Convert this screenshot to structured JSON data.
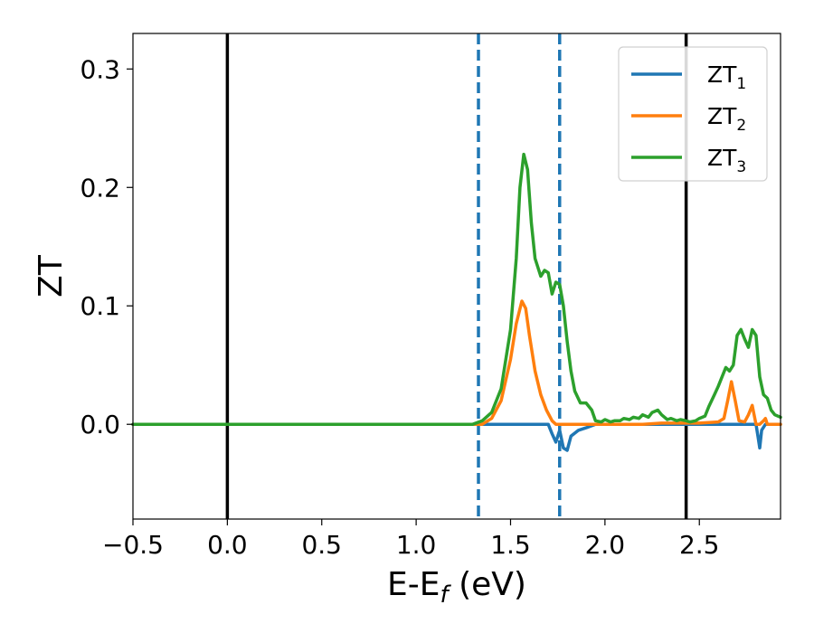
{
  "chart_data": {
    "type": "line",
    "xlabel": "E-E",
    "xlabel_sub": "f",
    "xlabel_unit": " (eV)",
    "ylabel": "ZT",
    "xlim": [
      -0.5,
      2.93
    ],
    "ylim": [
      -0.08,
      0.33
    ],
    "xticks": [
      -0.5,
      0.0,
      0.5,
      1.0,
      1.5,
      2.0,
      2.5
    ],
    "xtick_labels": [
      "−0.5",
      "0.0",
      "0.5",
      "1.0",
      "1.5",
      "2.0",
      "2.5"
    ],
    "yticks": [
      0.0,
      0.1,
      0.2,
      0.3
    ],
    "ytick_labels": [
      "0.0",
      "0.1",
      "0.2",
      "0.3"
    ],
    "grid": false,
    "legend_position": "top-right",
    "vertical_lines": [
      {
        "x": 0.0,
        "style": "solid",
        "color": "#000000"
      },
      {
        "x": 2.43,
        "style": "solid",
        "color": "#000000"
      },
      {
        "x": 1.33,
        "style": "dashed",
        "color": "#1f77b4"
      },
      {
        "x": 1.76,
        "style": "dashed",
        "color": "#1f77b4"
      }
    ],
    "series": [
      {
        "name": "ZT",
        "name_sub": "1",
        "color": "#1f77b4",
        "x": [
          -0.5,
          1.7,
          1.72,
          1.74,
          1.76,
          1.78,
          1.8,
          1.82,
          1.86,
          1.9,
          1.95,
          2.8,
          2.81,
          2.82,
          2.83,
          2.85,
          2.93
        ],
        "y": [
          0.0,
          0.0,
          -0.008,
          -0.015,
          -0.005,
          -0.02,
          -0.022,
          -0.01,
          -0.005,
          -0.003,
          0.0,
          0.0,
          -0.01,
          -0.02,
          -0.005,
          0.0,
          0.0
        ]
      },
      {
        "name": "ZT",
        "name_sub": "2",
        "color": "#ff7f0e",
        "x": [
          -0.5,
          1.35,
          1.4,
          1.45,
          1.5,
          1.53,
          1.56,
          1.58,
          1.6,
          1.63,
          1.66,
          1.69,
          1.72,
          1.74,
          2.2,
          2.3,
          2.4,
          2.5,
          2.6,
          2.63,
          2.65,
          2.67,
          2.69,
          2.71,
          2.74,
          2.76,
          2.78,
          2.8,
          2.82,
          2.84,
          2.85,
          2.86,
          2.93
        ],
        "y": [
          0.0,
          0.0,
          0.005,
          0.02,
          0.055,
          0.085,
          0.104,
          0.098,
          0.075,
          0.045,
          0.025,
          0.012,
          0.003,
          0.0,
          0.0,
          0.001,
          0.001,
          0.001,
          0.002,
          0.005,
          0.02,
          0.036,
          0.02,
          0.003,
          0.002,
          0.008,
          0.016,
          0.0,
          0.0,
          0.003,
          0.005,
          0.0,
          0.0
        ]
      },
      {
        "name": "ZT",
        "name_sub": "3",
        "color": "#2ca02c",
        "x": [
          -0.5,
          1.3,
          1.35,
          1.4,
          1.45,
          1.5,
          1.53,
          1.55,
          1.57,
          1.59,
          1.61,
          1.63,
          1.66,
          1.68,
          1.7,
          1.72,
          1.74,
          1.76,
          1.78,
          1.8,
          1.82,
          1.84,
          1.87,
          1.9,
          1.93,
          1.95,
          1.98,
          2.0,
          2.03,
          2.05,
          2.08,
          2.1,
          2.13,
          2.15,
          2.18,
          2.2,
          2.23,
          2.25,
          2.28,
          2.3,
          2.33,
          2.35,
          2.38,
          2.4,
          2.43,
          2.45,
          2.48,
          2.5,
          2.53,
          2.55,
          2.58,
          2.6,
          2.62,
          2.64,
          2.66,
          2.68,
          2.7,
          2.72,
          2.74,
          2.76,
          2.78,
          2.8,
          2.82,
          2.84,
          2.86,
          2.88,
          2.9,
          2.93
        ],
        "y": [
          0.0,
          0.0,
          0.003,
          0.01,
          0.03,
          0.08,
          0.14,
          0.2,
          0.228,
          0.215,
          0.17,
          0.14,
          0.125,
          0.13,
          0.128,
          0.11,
          0.12,
          0.118,
          0.1,
          0.07,
          0.045,
          0.028,
          0.018,
          0.018,
          0.012,
          0.003,
          0.002,
          0.004,
          0.002,
          0.003,
          0.003,
          0.005,
          0.004,
          0.006,
          0.005,
          0.008,
          0.006,
          0.01,
          0.012,
          0.008,
          0.004,
          0.005,
          0.003,
          0.004,
          0.003,
          0.002,
          0.003,
          0.005,
          0.007,
          0.015,
          0.025,
          0.032,
          0.04,
          0.048,
          0.045,
          0.05,
          0.075,
          0.08,
          0.072,
          0.065,
          0.08,
          0.075,
          0.04,
          0.025,
          0.022,
          0.012,
          0.008,
          0.006
        ]
      }
    ]
  }
}
